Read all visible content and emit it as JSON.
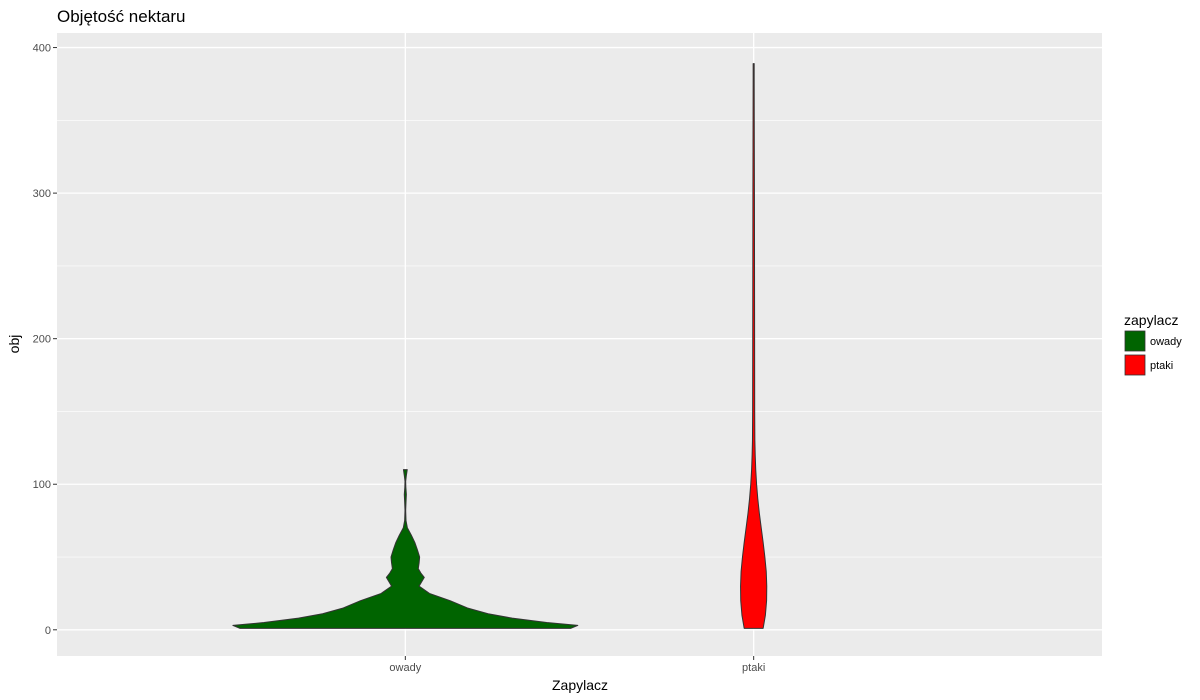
{
  "chart_data": {
    "type": "violin",
    "title": "Objętość nektaru",
    "xlabel": "Zapylacz",
    "ylabel": "obj",
    "categories": [
      "owady",
      "ptaki"
    ],
    "ylim": [
      -18,
      410
    ],
    "yticks": [
      0,
      100,
      200,
      300,
      400
    ],
    "grid": true,
    "legend": {
      "title": "zapylacz",
      "position": "right",
      "entries": [
        {
          "label": "owady",
          "color": "#006400"
        },
        {
          "label": "ptaki",
          "color": "#ff0000"
        }
      ]
    },
    "series": [
      {
        "category": "owady",
        "color": "#006400",
        "y_range": [
          1,
          110
        ],
        "profile": [
          {
            "y": 1,
            "w": 0.96
          },
          {
            "y": 3,
            "w": 1.0
          },
          {
            "y": 5,
            "w": 0.82
          },
          {
            "y": 8,
            "w": 0.62
          },
          {
            "y": 11,
            "w": 0.48
          },
          {
            "y": 15,
            "w": 0.36
          },
          {
            "y": 20,
            "w": 0.26
          },
          {
            "y": 25,
            "w": 0.14
          },
          {
            "y": 30,
            "w": 0.08
          },
          {
            "y": 33,
            "w": 0.095
          },
          {
            "y": 36,
            "w": 0.11
          },
          {
            "y": 39,
            "w": 0.09
          },
          {
            "y": 42,
            "w": 0.075
          },
          {
            "y": 46,
            "w": 0.08
          },
          {
            "y": 50,
            "w": 0.083
          },
          {
            "y": 55,
            "w": 0.07
          },
          {
            "y": 60,
            "w": 0.055
          },
          {
            "y": 65,
            "w": 0.035
          },
          {
            "y": 70,
            "w": 0.012
          },
          {
            "y": 75,
            "w": 0.004
          },
          {
            "y": 82,
            "w": 0.002
          },
          {
            "y": 88,
            "w": 0.004
          },
          {
            "y": 93,
            "w": 0.006
          },
          {
            "y": 98,
            "w": 0.003
          },
          {
            "y": 102,
            "w": 0.002
          },
          {
            "y": 106,
            "w": 0.006
          },
          {
            "y": 110,
            "w": 0.011
          }
        ]
      },
      {
        "category": "ptaki",
        "color": "#ff0000",
        "y_range": [
          1,
          389
        ],
        "profile": [
          {
            "y": 1,
            "w": 0.055
          },
          {
            "y": 10,
            "w": 0.068
          },
          {
            "y": 20,
            "w": 0.075
          },
          {
            "y": 30,
            "w": 0.076
          },
          {
            "y": 40,
            "w": 0.073
          },
          {
            "y": 50,
            "w": 0.065
          },
          {
            "y": 60,
            "w": 0.055
          },
          {
            "y": 70,
            "w": 0.044
          },
          {
            "y": 80,
            "w": 0.033
          },
          {
            "y": 90,
            "w": 0.024
          },
          {
            "y": 100,
            "w": 0.017
          },
          {
            "y": 110,
            "w": 0.012
          },
          {
            "y": 120,
            "w": 0.009
          },
          {
            "y": 130,
            "w": 0.007
          },
          {
            "y": 150,
            "w": 0.006
          },
          {
            "y": 200,
            "w": 0.0055
          },
          {
            "y": 250,
            "w": 0.005
          },
          {
            "y": 300,
            "w": 0.0045
          },
          {
            "y": 350,
            "w": 0.0035
          },
          {
            "y": 380,
            "w": 0.003
          },
          {
            "y": 389,
            "w": 0.003
          }
        ]
      }
    ]
  }
}
